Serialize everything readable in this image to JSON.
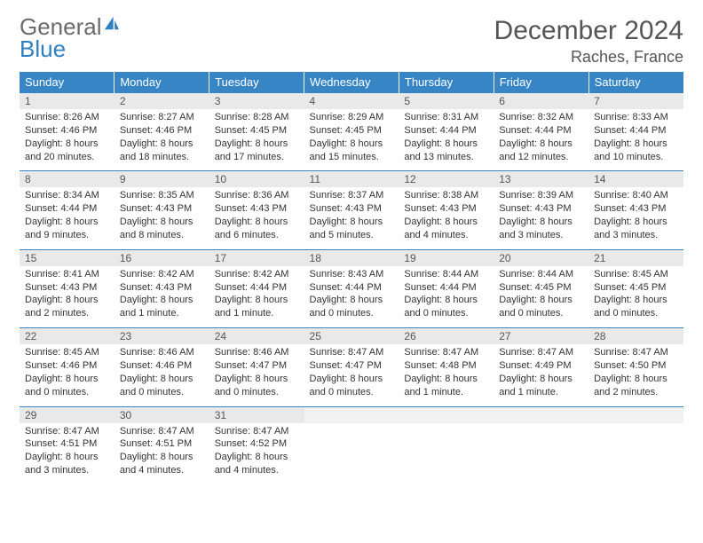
{
  "logo": {
    "text1": "General",
    "text2": "Blue",
    "icon_color": "#2f7fc1"
  },
  "title": "December 2024",
  "location": "Raches, France",
  "colors": {
    "header_bg": "#3885c6",
    "header_text": "#ffffff",
    "daynum_bg": "#e9e9e9",
    "text": "#333333",
    "rule": "#3885c6"
  },
  "weekdays": [
    "Sunday",
    "Monday",
    "Tuesday",
    "Wednesday",
    "Thursday",
    "Friday",
    "Saturday"
  ],
  "days": [
    {
      "n": "1",
      "sr": "8:26 AM",
      "ss": "4:46 PM",
      "dl": "8 hours and 20 minutes."
    },
    {
      "n": "2",
      "sr": "8:27 AM",
      "ss": "4:46 PM",
      "dl": "8 hours and 18 minutes."
    },
    {
      "n": "3",
      "sr": "8:28 AM",
      "ss": "4:45 PM",
      "dl": "8 hours and 17 minutes."
    },
    {
      "n": "4",
      "sr": "8:29 AM",
      "ss": "4:45 PM",
      "dl": "8 hours and 15 minutes."
    },
    {
      "n": "5",
      "sr": "8:31 AM",
      "ss": "4:44 PM",
      "dl": "8 hours and 13 minutes."
    },
    {
      "n": "6",
      "sr": "8:32 AM",
      "ss": "4:44 PM",
      "dl": "8 hours and 12 minutes."
    },
    {
      "n": "7",
      "sr": "8:33 AM",
      "ss": "4:44 PM",
      "dl": "8 hours and 10 minutes."
    },
    {
      "n": "8",
      "sr": "8:34 AM",
      "ss": "4:44 PM",
      "dl": "8 hours and 9 minutes."
    },
    {
      "n": "9",
      "sr": "8:35 AM",
      "ss": "4:43 PM",
      "dl": "8 hours and 8 minutes."
    },
    {
      "n": "10",
      "sr": "8:36 AM",
      "ss": "4:43 PM",
      "dl": "8 hours and 6 minutes."
    },
    {
      "n": "11",
      "sr": "8:37 AM",
      "ss": "4:43 PM",
      "dl": "8 hours and 5 minutes."
    },
    {
      "n": "12",
      "sr": "8:38 AM",
      "ss": "4:43 PM",
      "dl": "8 hours and 4 minutes."
    },
    {
      "n": "13",
      "sr": "8:39 AM",
      "ss": "4:43 PM",
      "dl": "8 hours and 3 minutes."
    },
    {
      "n": "14",
      "sr": "8:40 AM",
      "ss": "4:43 PM",
      "dl": "8 hours and 3 minutes."
    },
    {
      "n": "15",
      "sr": "8:41 AM",
      "ss": "4:43 PM",
      "dl": "8 hours and 2 minutes."
    },
    {
      "n": "16",
      "sr": "8:42 AM",
      "ss": "4:43 PM",
      "dl": "8 hours and 1 minute."
    },
    {
      "n": "17",
      "sr": "8:42 AM",
      "ss": "4:44 PM",
      "dl": "8 hours and 1 minute."
    },
    {
      "n": "18",
      "sr": "8:43 AM",
      "ss": "4:44 PM",
      "dl": "8 hours and 0 minutes."
    },
    {
      "n": "19",
      "sr": "8:44 AM",
      "ss": "4:44 PM",
      "dl": "8 hours and 0 minutes."
    },
    {
      "n": "20",
      "sr": "8:44 AM",
      "ss": "4:45 PM",
      "dl": "8 hours and 0 minutes."
    },
    {
      "n": "21",
      "sr": "8:45 AM",
      "ss": "4:45 PM",
      "dl": "8 hours and 0 minutes."
    },
    {
      "n": "22",
      "sr": "8:45 AM",
      "ss": "4:46 PM",
      "dl": "8 hours and 0 minutes."
    },
    {
      "n": "23",
      "sr": "8:46 AM",
      "ss": "4:46 PM",
      "dl": "8 hours and 0 minutes."
    },
    {
      "n": "24",
      "sr": "8:46 AM",
      "ss": "4:47 PM",
      "dl": "8 hours and 0 minutes."
    },
    {
      "n": "25",
      "sr": "8:47 AM",
      "ss": "4:47 PM",
      "dl": "8 hours and 0 minutes."
    },
    {
      "n": "26",
      "sr": "8:47 AM",
      "ss": "4:48 PM",
      "dl": "8 hours and 1 minute."
    },
    {
      "n": "27",
      "sr": "8:47 AM",
      "ss": "4:49 PM",
      "dl": "8 hours and 1 minute."
    },
    {
      "n": "28",
      "sr": "8:47 AM",
      "ss": "4:50 PM",
      "dl": "8 hours and 2 minutes."
    },
    {
      "n": "29",
      "sr": "8:47 AM",
      "ss": "4:51 PM",
      "dl": "8 hours and 3 minutes."
    },
    {
      "n": "30",
      "sr": "8:47 AM",
      "ss": "4:51 PM",
      "dl": "8 hours and 4 minutes."
    },
    {
      "n": "31",
      "sr": "8:47 AM",
      "ss": "4:52 PM",
      "dl": "8 hours and 4 minutes."
    }
  ],
  "labels": {
    "sunrise": "Sunrise:",
    "sunset": "Sunset:",
    "daylight": "Daylight:"
  },
  "start_weekday": 0,
  "trailing_empty": 4
}
